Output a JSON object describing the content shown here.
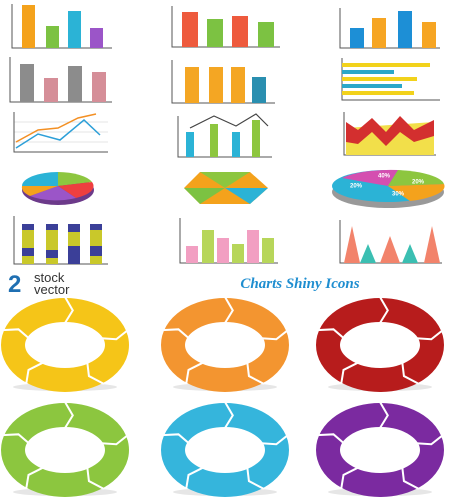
{
  "logo": {
    "number": "2",
    "line1": "stock",
    "line2": "vector"
  },
  "title": "Charts Shiny Icons",
  "pie_labels": [
    "40%",
    "20%",
    "20%",
    "30%"
  ]
}
